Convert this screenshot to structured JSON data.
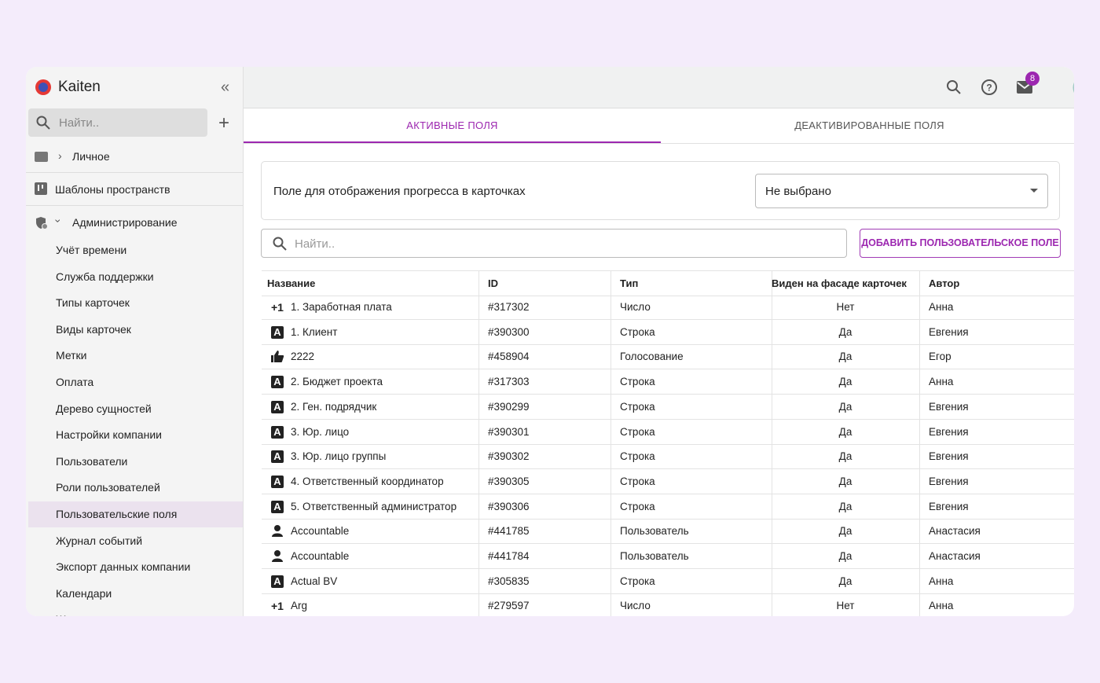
{
  "sidebar": {
    "brand": "Kaiten",
    "search_placeholder": "Найти..",
    "personal": "Личное",
    "templates": "Шаблоны пространств",
    "admin": "Администрирование",
    "admin_items": [
      "Учёт времени",
      "Служба поддержки",
      "Типы карточек",
      "Виды карточек",
      "Метки",
      "Оплата",
      "Дерево сущностей",
      "Настройки компании",
      "Пользователи",
      "Роли пользователей",
      "Пользовательские поля",
      "Журнал событий",
      "Экспорт данных компании",
      "Календари",
      "Журнал аудита"
    ],
    "active_item": 10
  },
  "header": {
    "notification_count": "8"
  },
  "tabs": {
    "items": [
      "АКТИВНЫЕ ПОЛЯ",
      "ДЕАКТИВИРОВАННЫЕ ПОЛЯ"
    ],
    "active": 0
  },
  "progress": {
    "label": "Поле для отображения прогресса в карточках",
    "select": "Не выбрано"
  },
  "search_placeholder": "Найти..",
  "add_button": "ДОБАВИТЬ ПОЛЬЗОВАТЕЛЬСКОЕ ПОЛЕ",
  "table": {
    "columns": [
      "Название",
      "ID",
      "Тип",
      "Виден на фасаде карточек",
      "Автор"
    ],
    "rows": [
      {
        "icon": "+1",
        "cells": [
          "1. Заработная плата",
          "#317302",
          "Число",
          "Нет",
          "Анна"
        ]
      },
      {
        "icon": "A",
        "cells": [
          "1. Клиент",
          "#390300",
          "Строка",
          "Да",
          "Евгения"
        ]
      },
      {
        "icon": "thumb-up",
        "cells": [
          "2222",
          "#458904",
          "Голосование",
          "Да",
          "Егор"
        ]
      },
      {
        "icon": "A",
        "cells": [
          "2. Бюджет проекта",
          "#317303",
          "Строка",
          "Да",
          "Анна"
        ]
      },
      {
        "icon": "A",
        "cells": [
          "2. Ген. подрядчик",
          "#390299",
          "Строка",
          "Да",
          "Евгения"
        ]
      },
      {
        "icon": "A",
        "cells": [
          "3. Юр. лицо",
          "#390301",
          "Строка",
          "Да",
          "Евгения"
        ]
      },
      {
        "icon": "A",
        "cells": [
          "3. Юр. лицо группы",
          "#390302",
          "Строка",
          "Да",
          "Евгения"
        ]
      },
      {
        "icon": "A",
        "cells": [
          "4. Ответственный координатор",
          "#390305",
          "Строка",
          "Да",
          "Евгения"
        ]
      },
      {
        "icon": "A",
        "cells": [
          "5. Ответственный администратор",
          "#390306",
          "Строка",
          "Да",
          "Евгения"
        ]
      },
      {
        "icon": "person",
        "cells": [
          "Accountable",
          "#441785",
          "Пользователь",
          "Да",
          "Анастасия"
        ]
      },
      {
        "icon": "person",
        "cells": [
          "Accountable",
          "#441784",
          "Пользователь",
          "Да",
          "Анастасия"
        ]
      },
      {
        "icon": "A",
        "cells": [
          "Actual BV",
          "#305835",
          "Строка",
          "Да",
          "Анна"
        ]
      },
      {
        "icon": "+1",
        "cells": [
          "Arg",
          "#279597",
          "Число",
          "Нет",
          "Анна"
        ]
      }
    ]
  }
}
